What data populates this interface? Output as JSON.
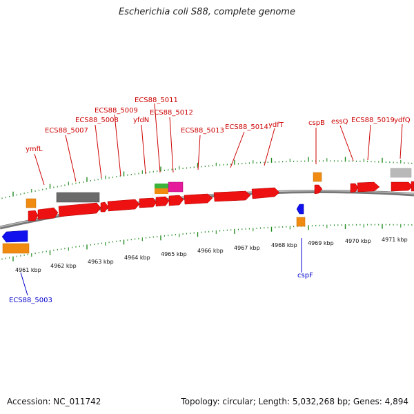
{
  "title": "Escherichia coli S88, complete genome",
  "accession": "Accession: NC_011742",
  "summary": "Topology: circular; Length: 5,032,268 bp; Genes: 4,894",
  "colors": {
    "cds": "#ee1111",
    "pseudo": "#6a6a6a",
    "gene_small": "#f08a10",
    "minus": "#1111ee",
    "label_plus": "#cc0000",
    "label_minus": "#0000cc",
    "backbone": "#888888",
    "tick": "#1f8a1f"
  },
  "kbp_labels": [
    "4961 kbp",
    "4962 kbp",
    "4963 kbp",
    "4964 kbp",
    "4965 kbp",
    "4966 kbp",
    "4967 kbp",
    "4968 kbp",
    "4969 kbp",
    "4970 kbp",
    "4971 kbp"
  ],
  "plus_labels": [
    "ymfL",
    "ECS88_5007",
    "ECS88_5008",
    "ECS88_5009",
    "ECS88_5011",
    "yfdN",
    "ECS88_5012",
    "ECS88_5013",
    "ECS88_5014",
    "ydfT",
    "cspB",
    "essQ",
    "ECS88_5019",
    "ydfQ"
  ],
  "minus_labels": [
    "ECS88_5003",
    "cspF"
  ]
}
